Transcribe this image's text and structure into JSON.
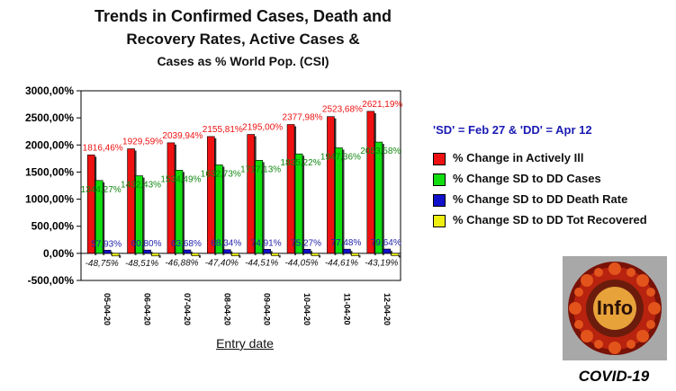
{
  "title_lines": [
    "Trends in Confirmed Cases, Death and",
    "Recovery Rates, Active Cases &",
    "Cases as % World Pop. (CSI)"
  ],
  "note": "'SD' = Feb 27 & 'DD' = Apr 12",
  "logo_text": "Info",
  "caption": "COVID-19",
  "chart_data": {
    "type": "bar",
    "categories": [
      "05-04-20",
      "06-04-20",
      "07-04-20",
      "08-04-20",
      "09-04-20",
      "10-04-20",
      "11-04-20",
      "12-04-20"
    ],
    "xlabel": "Entry date",
    "ylabel": "",
    "ylim": [
      -500,
      3000
    ],
    "yticks": [
      "3000,00%",
      "2500,00%",
      "2000,00%",
      "1500,00%",
      "1000,00%",
      "500,00%",
      "0,00%",
      "-500,00%"
    ],
    "ytick_values": [
      3000,
      2500,
      2000,
      1500,
      1000,
      500,
      0,
      -500
    ],
    "grid": false,
    "legend_position": "right",
    "series": [
      {
        "name": "% Change in Actively Ill",
        "color": "#ee1111",
        "label_color": "#ee1111",
        "values": [
          1816.46,
          1929.59,
          2039.94,
          2155.81,
          2195.0,
          2377.98,
          2523.68,
          2621.19
        ],
        "labels": [
          "1816,46%",
          "1929,59%",
          "2039,94%",
          "2155,81%",
          "2195,00%",
          "2377,98%",
          "2523,68%",
          "2621,19%"
        ]
      },
      {
        "name": "% Change SD to DD Cases",
        "color": "#11dd11",
        "label_color": "#118811",
        "values": [
          1344.27,
          1432.43,
          1534.49,
          1632.73,
          1717.13,
          1835.22,
          1947.36,
          2053.58
        ],
        "labels": [
          "1344,27%",
          "1432,43%",
          "1534,49%",
          "1632,73%",
          "1717,13%",
          "1835,22%",
          "1947,36%",
          "2053,58%"
        ]
      },
      {
        "name": "% Change SD to DD Death Rate",
        "color": "#1111cc",
        "label_color": "#2222aa",
        "values": [
          57.93,
          60.8,
          63.68,
          68.34,
          74.91,
          75.27,
          77.48,
          79.64
        ],
        "labels": [
          "57,93%",
          "60,80%",
          "63,68%",
          "68,34%",
          "74,91%",
          "75,27%",
          "77,48%",
          "79,64%"
        ]
      },
      {
        "name": "% Change SD to DD Tot Recovered",
        "color": "#eeee11",
        "label_color": "#111111",
        "values": [
          -48.75,
          -48.51,
          -46.88,
          -47.4,
          -44.51,
          -44.05,
          -44.61,
          -43.19
        ],
        "labels": [
          "-48,75%",
          "-48,51%",
          "-46,88%",
          "-47,40%",
          "-44,51%",
          "-44,05%",
          "-44,61%",
          "-43,19%"
        ]
      }
    ]
  }
}
